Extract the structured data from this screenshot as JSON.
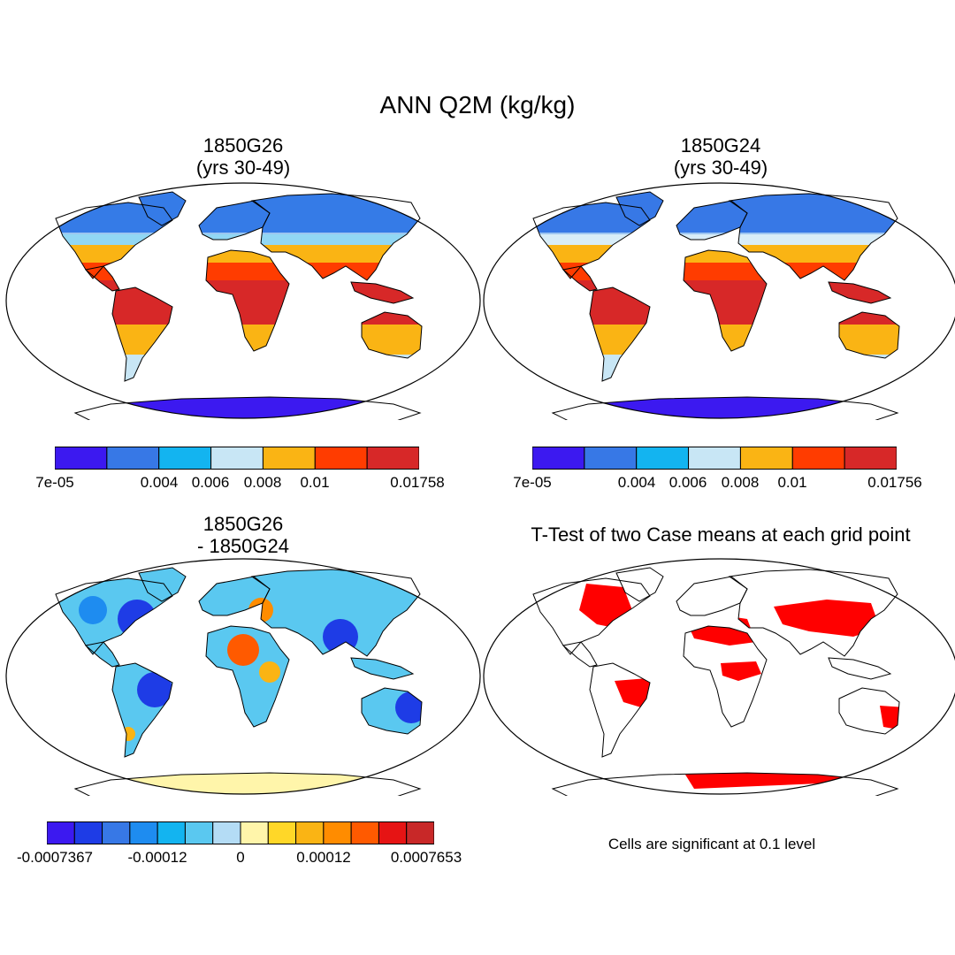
{
  "figure": {
    "title": "ANN Q2M (kg/kg)"
  },
  "panels": [
    {
      "id": "top-left",
      "title_line1": "1850G26",
      "title_line2": "(yrs 30-49)",
      "colorbar": {
        "colors": [
          "#3c19f0",
          "#3778e6",
          "#13b4f0",
          "#c8e6f5",
          "#fab414",
          "#ff3c00",
          "#d72828"
        ],
        "labels": [
          "7e-05",
          "0.004",
          "0.006",
          "0.008",
          "0.01",
          "0.01758"
        ]
      }
    },
    {
      "id": "top-right",
      "title_line1": "1850G24",
      "title_line2": "(yrs 30-49)",
      "colorbar": {
        "colors": [
          "#3c19f0",
          "#3778e6",
          "#13b4f0",
          "#c8e6f5",
          "#fab414",
          "#ff3c00",
          "#d72828"
        ],
        "labels": [
          "7e-05",
          "0.004",
          "0.006",
          "0.008",
          "0.01",
          "0.01756"
        ]
      }
    },
    {
      "id": "bottom-left",
      "title_line1": "1850G26",
      "title_line2": "- 1850G24",
      "colorbar": {
        "colors": [
          "#3c19f0",
          "#1e3ce6",
          "#3778e6",
          "#1e8cf0",
          "#13b4f0",
          "#5ac8f0",
          "#b4dcf5",
          "#fff5aa",
          "#ffd728",
          "#fab414",
          "#ff8c00",
          "#ff5a00",
          "#e61414",
          "#c82828"
        ],
        "labels": [
          "-0.0007367",
          "-0.00012",
          "0",
          "0.00012",
          "0.0007653"
        ]
      }
    },
    {
      "id": "bottom-right",
      "title_line1": "T-Test of two Case means at each grid point",
      "note": "Cells are significant at 0.1 level"
    }
  ],
  "map_colors": {
    "ocean": "#ffffff",
    "coast": "#000000",
    "significant": "#ff0000"
  }
}
